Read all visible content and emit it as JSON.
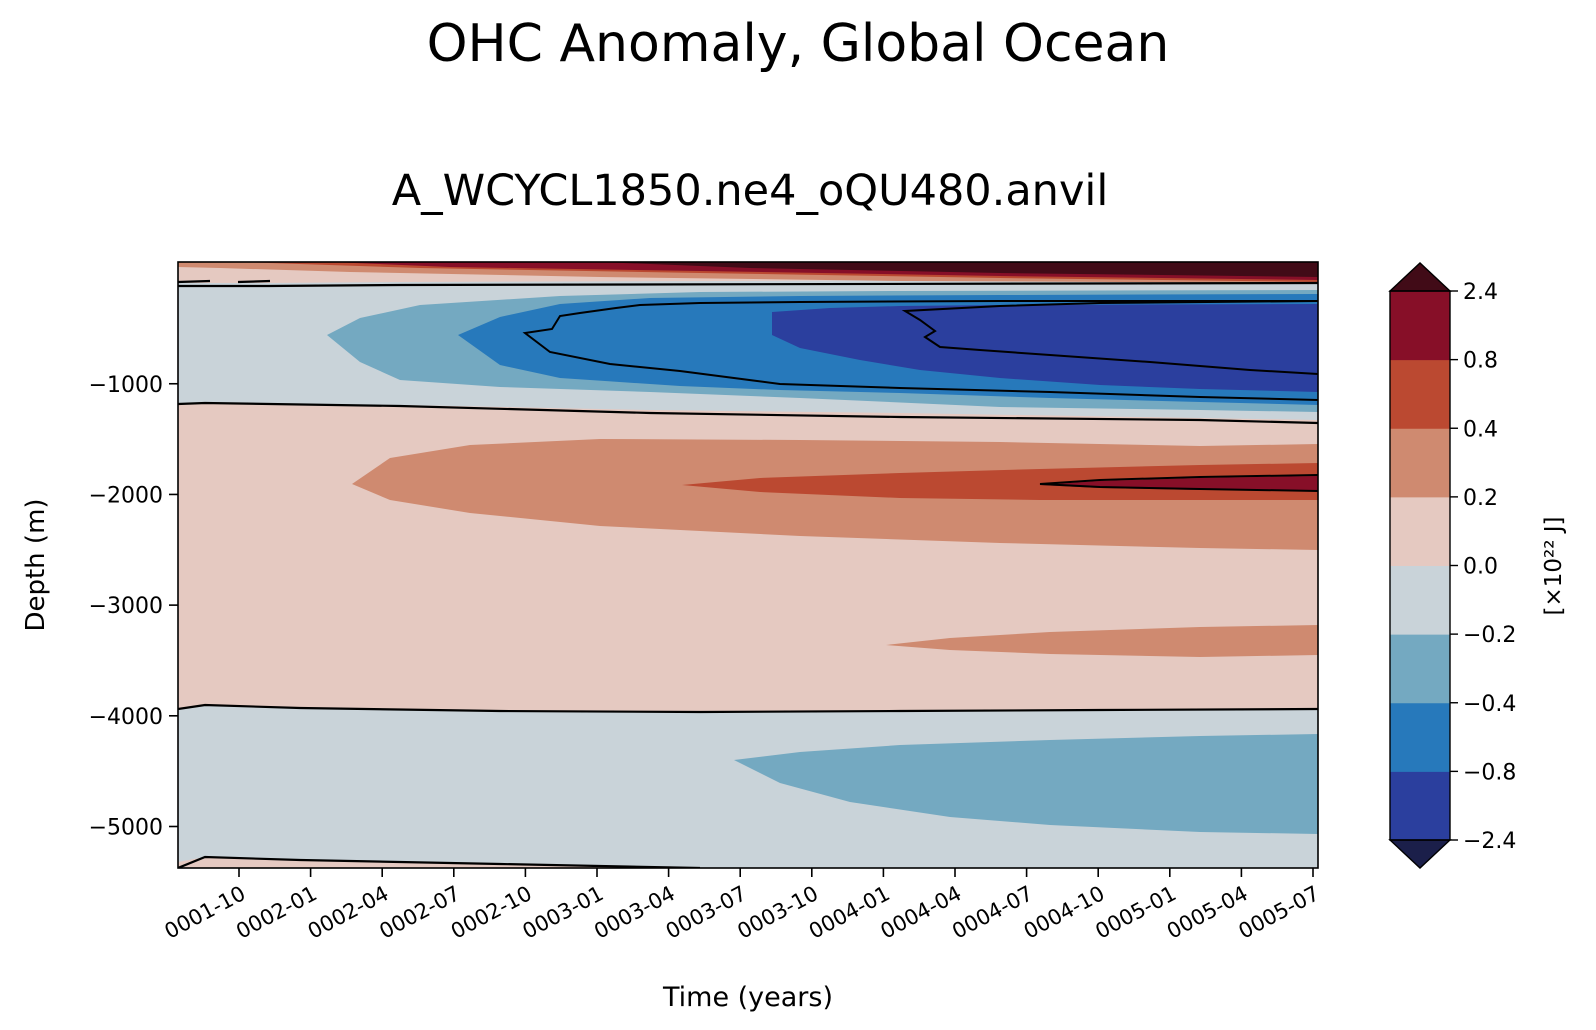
{
  "title": "OHC Anomaly, Global Ocean",
  "subtitle": "A_WCYCL1850.ne4_oQU480.anvil",
  "chart_data": {
    "type": "heatmap",
    "title": "OHC Anomaly, Global Ocean",
    "subtitle": "A_WCYCL1850.ne4_oQU480.anvil",
    "xlabel": "Time (years)",
    "ylabel": "Depth (m)",
    "x_ticks": [
      "0001-10",
      "0002-01",
      "0002-04",
      "0002-07",
      "0002-10",
      "0003-01",
      "0003-04",
      "0003-07",
      "0003-10",
      "0004-01",
      "0004-04",
      "0004-07",
      "0004-10",
      "0005-01",
      "0005-04",
      "0005-07"
    ],
    "y_ticks": [
      -1000,
      -2000,
      -3000,
      -4000,
      -5000
    ],
    "y_tick_labels": [
      "−1000",
      "−2000",
      "−3000",
      "−4000",
      "−5000"
    ],
    "ylim": [
      -5375,
      100
    ],
    "colorbar": {
      "label": "[×10²² J]",
      "levels": [
        -2.4,
        -0.8,
        -0.4,
        -0.2,
        0.0,
        0.2,
        0.4,
        0.8,
        2.4
      ],
      "level_labels": [
        "−2.4",
        "−0.8",
        "−0.4",
        "−0.2",
        "0.0",
        "0.2",
        "0.4",
        "0.8",
        "2.4"
      ],
      "colors": [
        "#2b3f9e",
        "#2779bb",
        "#74a9c1",
        "#c9d3d9",
        "#e5c9c1",
        "#cf8a70",
        "#bb4931",
        "#870f28"
      ],
      "extend_low_color": "#1b1f4a",
      "extend_high_color": "#410b17"
    }
  }
}
